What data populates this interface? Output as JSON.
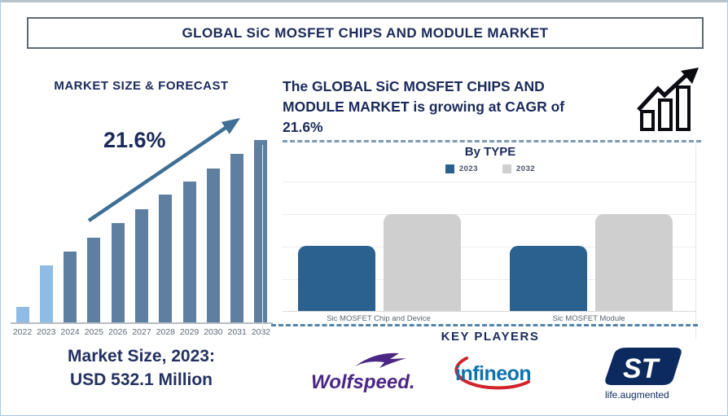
{
  "title": "GLOBAL SiC MOSFET CHIPS AND MODULE MARKET",
  "left_panel": {
    "heading": "MARKET SIZE & FORECAST",
    "cagr_annotation": "21.6%",
    "market_size_line1": "Market Size, 2023:",
    "market_size_line2": "USD 532.1 Million"
  },
  "right_panel": {
    "growth_lines": {
      "line1": "The GLOBAL SiC MOSFET CHIPS AND",
      "line2": "MODULE MARKET is growing at CAGR of",
      "line3": "21.6%"
    },
    "by_type_title": "By TYPE",
    "key_players_title": "KEY PLAYERS",
    "players": {
      "wolfspeed": {
        "name": "Wolfspeed.",
        "color": "#4b2685"
      },
      "infineon": {
        "name": "infineon",
        "text_color": "#0e72ac",
        "swoosh_color": "#d2232a"
      },
      "st": {
        "name": "ST",
        "tagline": "life.augmented",
        "color": "#0c2a5e"
      }
    }
  },
  "chart_data": [
    {
      "type": "bar",
      "title": "MARKET SIZE & FORECAST",
      "annotation": "21.6%",
      "footnote": "Market Size, 2023: USD 532.1 Million",
      "categories": [
        "2022",
        "2023",
        "2024",
        "2025",
        "2026",
        "2027",
        "2028",
        "2029",
        "2030",
        "2031",
        "2032"
      ],
      "values": [
        19,
        70,
        87,
        104,
        122,
        139,
        157,
        173,
        189,
        207,
        224
      ],
      "values_note": "relative bar heights in px; no value axis shown in figure",
      "colors": [
        "#8FBCE4",
        "#8FBCE4",
        "#5E7FA0",
        "#5E7FA0",
        "#5E7FA0",
        "#5E7FA0",
        "#5E7FA0",
        "#5E7FA0",
        "#5E7FA0",
        "#5E7FA0",
        "#5E7FA0"
      ],
      "xlabel": "",
      "ylabel": "",
      "grid": false,
      "trend_arrow_color": "#3f6f94"
    },
    {
      "type": "bar",
      "title": "By TYPE",
      "categories": [
        "Sic MOSFET Chip and Device",
        "Sic MOSFET Module"
      ],
      "series": [
        {
          "name": "2023",
          "color": "#2a618f",
          "values": [
            80,
            80
          ]
        },
        {
          "name": "2032",
          "color": "#cfcfcf",
          "values": [
            119,
            119
          ]
        }
      ],
      "values_note": "relative bar heights in px; no value axis shown in figure",
      "xlabel": "",
      "ylabel": "",
      "grid": true,
      "legend_position": "top"
    }
  ]
}
